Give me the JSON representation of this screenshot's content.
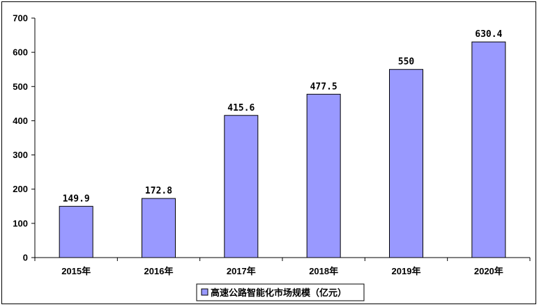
{
  "chart_data": {
    "type": "bar",
    "categories": [
      "2015年",
      "2016年",
      "2017年",
      "2018年",
      "2019年",
      "2020年"
    ],
    "series": [
      {
        "name": "高速公路智能化市场规模（亿元）",
        "values": [
          149.9,
          172.8,
          415.6,
          477.5,
          550,
          630.4
        ],
        "value_labels": [
          "149.9",
          "172.8",
          "415.6",
          "477.5",
          "550",
          "630.4"
        ]
      }
    ],
    "y_ticks": [
      "0",
      "100",
      "200",
      "300",
      "400",
      "500",
      "600",
      "700"
    ],
    "ylim": [
      0,
      700
    ],
    "title": "",
    "xlabel": "",
    "ylabel": "",
    "grid": false,
    "legend_position": "bottom",
    "colors": {
      "bar_fill": "#9999ff",
      "bar_stroke": "#000000"
    }
  }
}
